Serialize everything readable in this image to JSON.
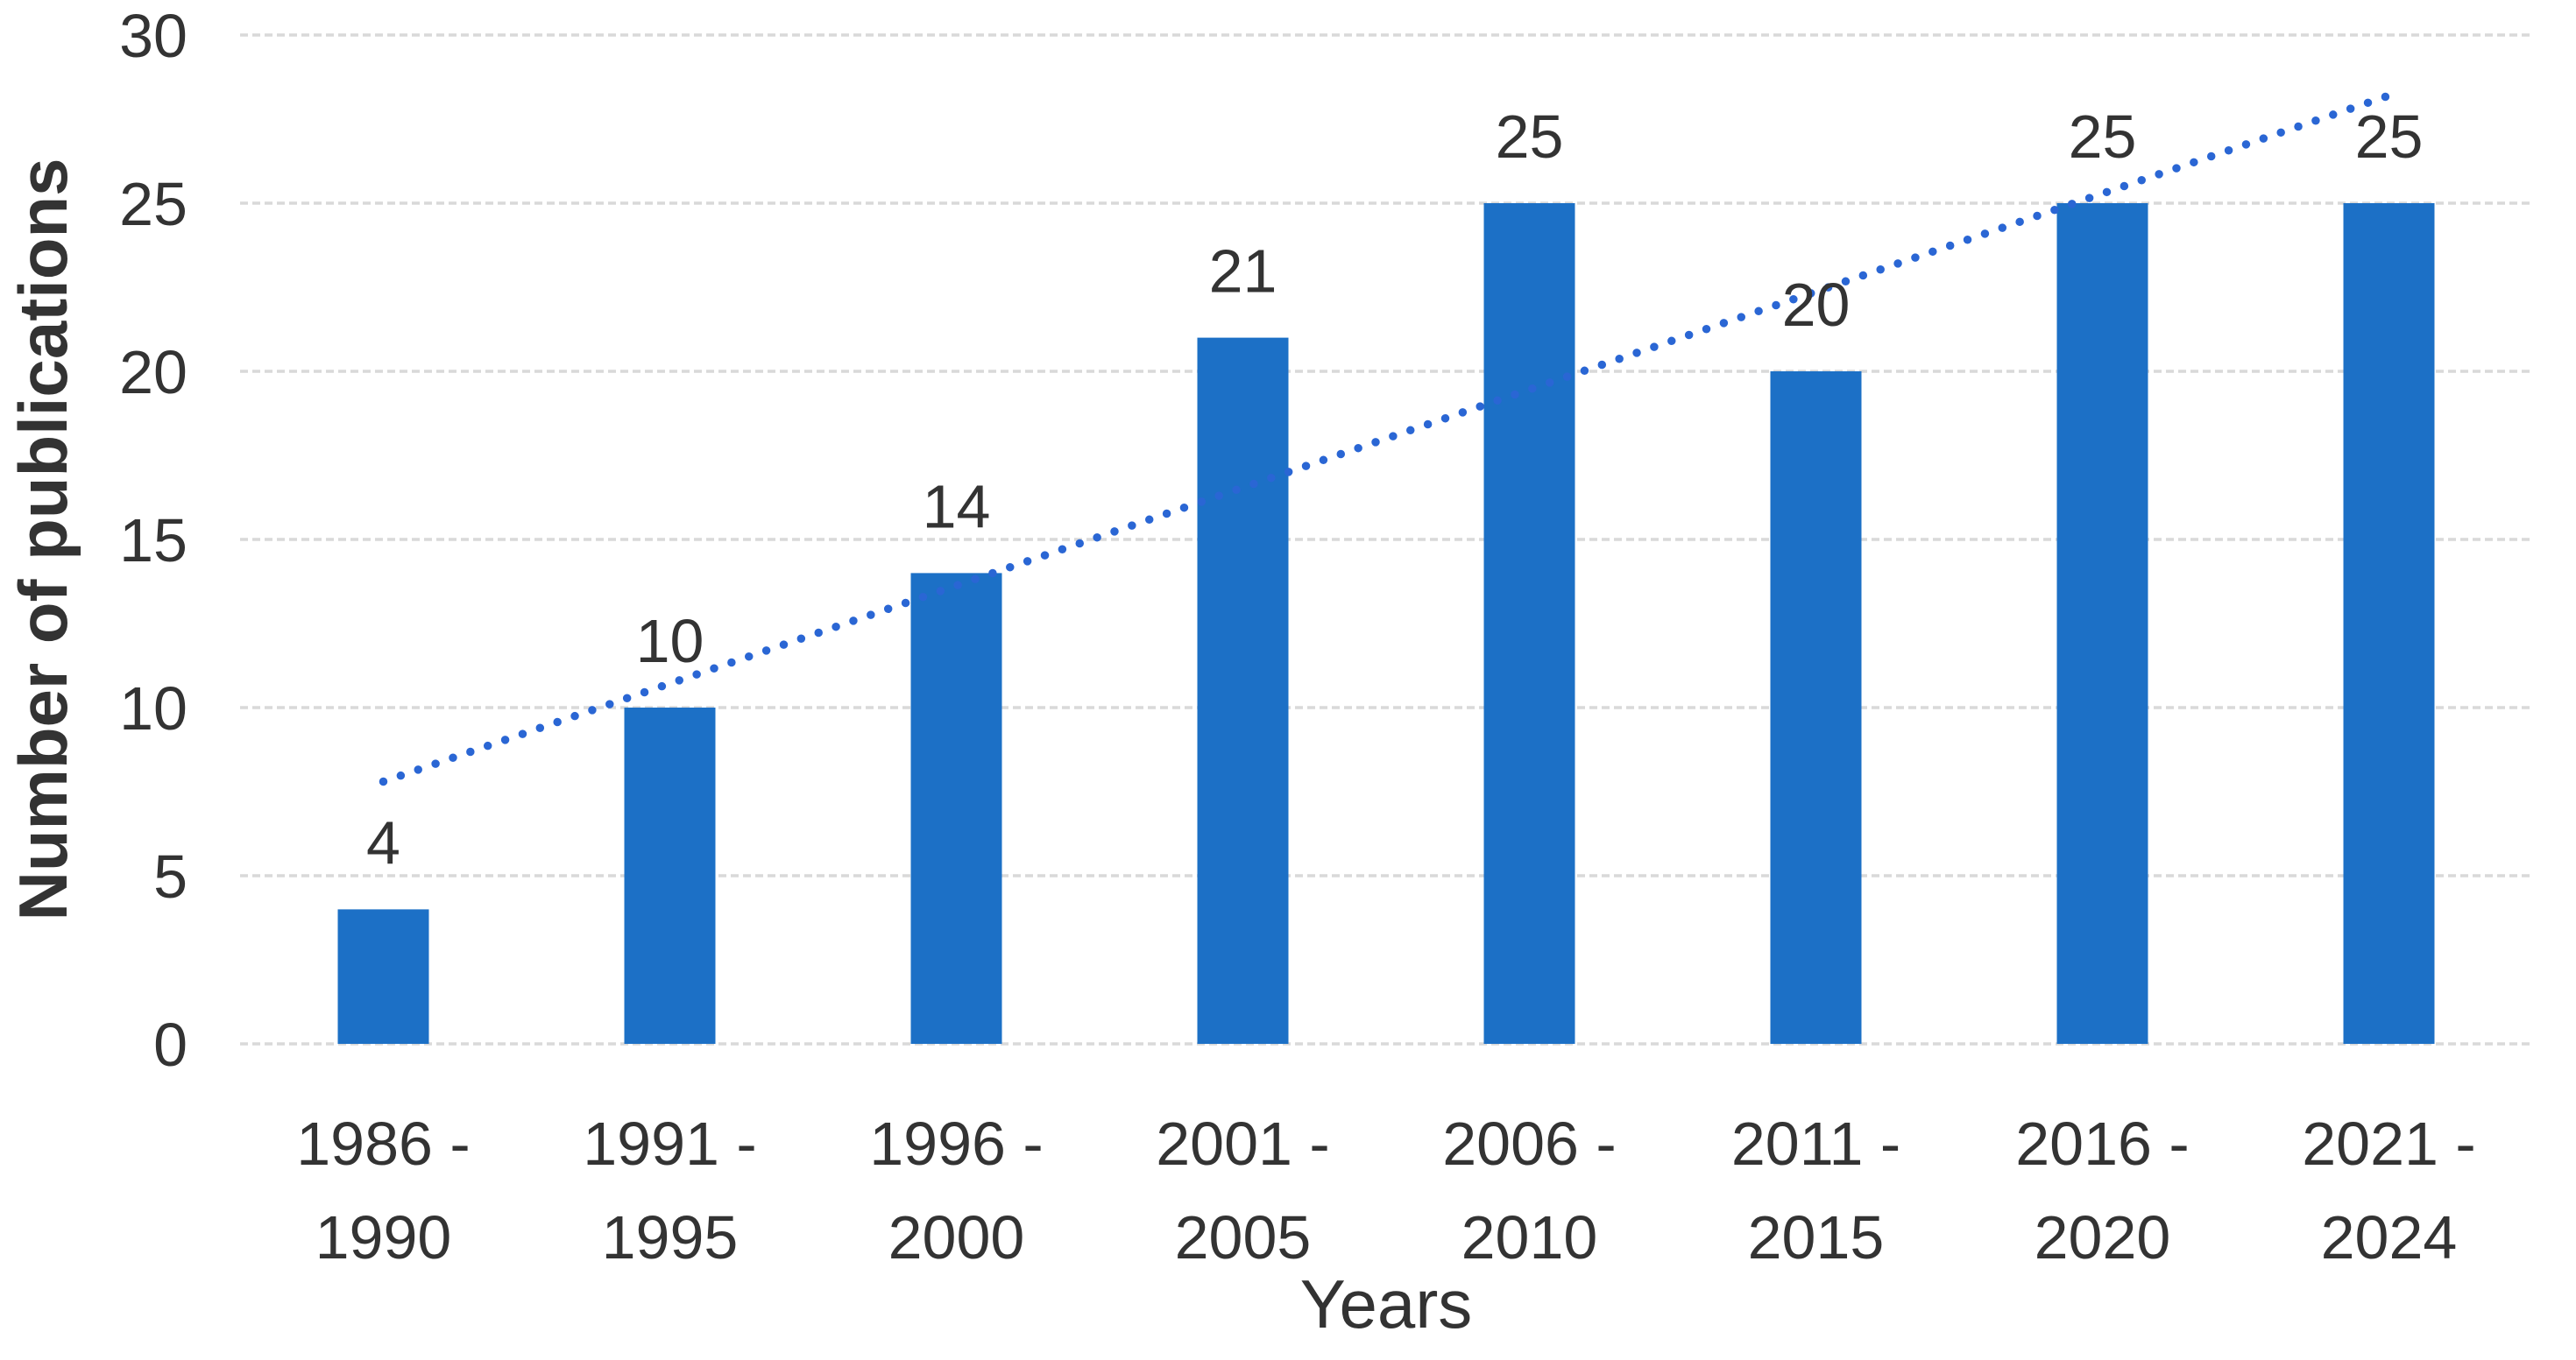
{
  "chart_data": {
    "type": "bar",
    "title": "",
    "xlabel": "Years",
    "ylabel": "Number of publications",
    "categories": [
      "1986 - 1990",
      "1991 - 1995",
      "1996 - 2000",
      "2001 - 2005",
      "2006 - 2010",
      "2011 - 2015",
      "2016 - 2020",
      "2021 - 2024"
    ],
    "category_tick_lines": [
      [
        "1986 -",
        "1990"
      ],
      [
        "1991 -",
        "1995"
      ],
      [
        "1996 -",
        "2000"
      ],
      [
        "2001 -",
        "2005"
      ],
      [
        "2006 -",
        "2010"
      ],
      [
        "2011 -",
        "2015"
      ],
      [
        "2016 -",
        "2020"
      ],
      [
        "2021 -",
        "2024"
      ]
    ],
    "values": [
      4,
      10,
      14,
      21,
      25,
      20,
      25,
      25
    ],
    "data_labels": [
      "4",
      "10",
      "14",
      "21",
      "25",
      "20",
      "25",
      "25"
    ],
    "ylim": [
      0,
      30
    ],
    "yticks": [
      0,
      5,
      10,
      15,
      20,
      25,
      30
    ],
    "grid": true,
    "legend": "none",
    "trendline": {
      "type": "linear",
      "style": "dotted",
      "start_value": 7.8,
      "end_value": 28.2
    },
    "colors": {
      "bar": "#1C70C6",
      "trendline": "#2A66D4",
      "gridline": "#D9D9D9",
      "text": "#333333",
      "background": "#FFFFFF"
    }
  }
}
